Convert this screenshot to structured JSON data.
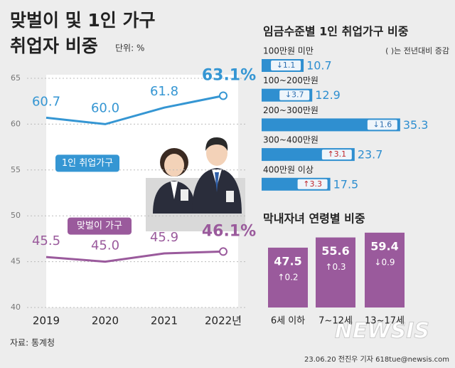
{
  "title_lines": [
    "맞벌이 및 1인 가구",
    "취업자 비중"
  ],
  "unit": "단위: %",
  "source": "자료: 통계청",
  "credit": "23.06.20 전진우 기자 618tue@newsis.com",
  "watermark": "NEWSIS",
  "chart_data": [
    {
      "type": "line",
      "categories": [
        "2019",
        "2020",
        "2021",
        "2022년"
      ],
      "ylim": [
        40,
        65
      ],
      "yticks": [
        40,
        45,
        50,
        55,
        60,
        65
      ],
      "grid": true,
      "series": [
        {
          "name": "1인 취업가구",
          "color": "#3596d3",
          "values": [
            60.7,
            60.0,
            61.8,
            63.1
          ],
          "value_labels": [
            "60.7",
            "60.0",
            "61.8",
            "63.1%"
          ]
        },
        {
          "name": "맞벌이 가구",
          "color": "#9a5a9c",
          "values": [
            45.5,
            45.0,
            45.9,
            46.1
          ],
          "value_labels": [
            "45.5",
            "45.0",
            "45.9",
            "46.1%"
          ]
        }
      ]
    },
    {
      "type": "hbar",
      "title": "임금수준별 1인 취업가구 비중",
      "note": "( )는 전년대비 증감",
      "color": "#2f8fd0",
      "categories": [
        "100만원 미만",
        "100~200만원",
        "200~300만원",
        "300~400만원",
        "400만원 이상"
      ],
      "values": [
        10.7,
        12.9,
        35.3,
        23.7,
        17.5
      ],
      "changes": [
        -1.1,
        -3.7,
        -1.6,
        3.1,
        3.3
      ],
      "change_labels": [
        "↓1.1",
        "↓3.7",
        "↓1.6",
        "↑3.1",
        "↑3.3"
      ]
    },
    {
      "type": "bar",
      "title": "막내자녀 연령별 비중",
      "color": "#9a5a9c",
      "categories": [
        "6세 이하",
        "7~12세",
        "13~17세"
      ],
      "values": [
        47.5,
        55.6,
        59.4
      ],
      "changes": [
        0.2,
        0.3,
        -0.9
      ],
      "change_labels": [
        "↑0.2",
        "↑0.3",
        "↓0.9"
      ]
    }
  ]
}
